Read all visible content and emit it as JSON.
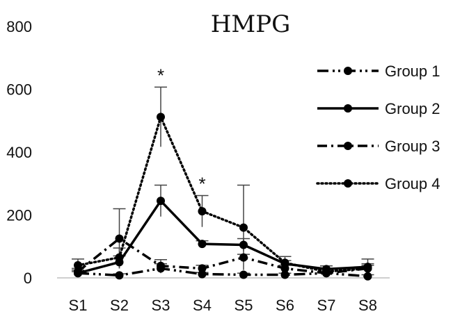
{
  "chart_data": {
    "type": "line",
    "title": "HMPG",
    "xlabel": "",
    "ylabel": "",
    "categories": [
      "S1",
      "S2",
      "S3",
      "S4",
      "S5",
      "S6",
      "S7",
      "S8"
    ],
    "ylim": [
      0,
      800
    ],
    "yticks": [
      0,
      200,
      400,
      600,
      800
    ],
    "grid": false,
    "legend": "right",
    "series": [
      {
        "name": "Group 1",
        "style": "dash-dot-dot",
        "values": [
          15,
          8,
          30,
          12,
          10,
          10,
          15,
          5
        ],
        "errors": [
          5,
          5,
          15,
          5,
          5,
          5,
          5,
          5
        ]
      },
      {
        "name": "Group 2",
        "style": "solid",
        "values": [
          15,
          50,
          245,
          108,
          105,
          45,
          28,
          35
        ],
        "errors": [
          10,
          20,
          50,
          10,
          20,
          10,
          10,
          10
        ]
      },
      {
        "name": "Group 3",
        "style": "dash-dot",
        "values": [
          20,
          125,
          38,
          30,
          65,
          30,
          15,
          30
        ],
        "errors": [
          10,
          95,
          20,
          10,
          10,
          10,
          5,
          30
        ]
      },
      {
        "name": "Group 4",
        "style": "dotted",
        "values": [
          40,
          65,
          512,
          212,
          160,
          48,
          20,
          30
        ],
        "errors": [
          20,
          30,
          95,
          50,
          135,
          20,
          10,
          10
        ]
      }
    ],
    "annotations": [
      {
        "category": "S3",
        "text": "*"
      },
      {
        "category": "S4",
        "text": "*"
      }
    ]
  }
}
